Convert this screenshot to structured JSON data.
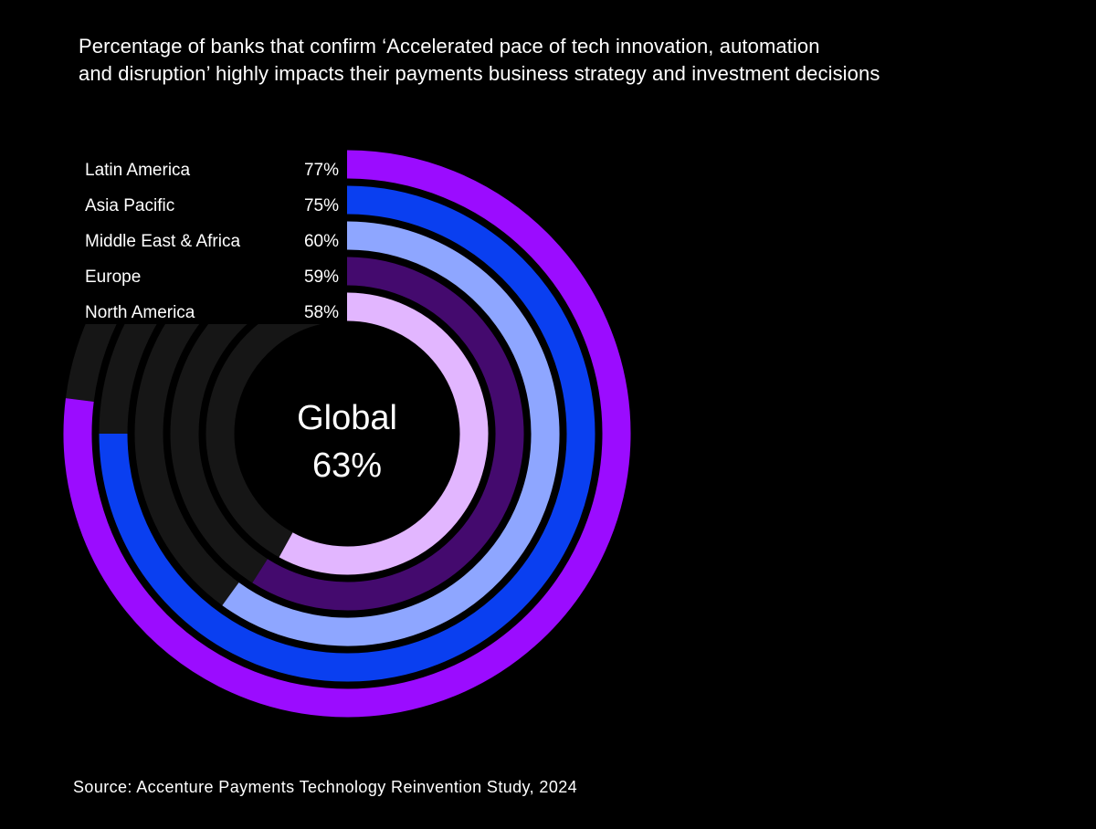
{
  "chart_data": {
    "type": "radial-bar",
    "title_lines": [
      "Percentage of banks that confirm ‘Accelerated pace of tech innovation, automation",
      "and disruption’ highly impacts their payments business strategy and investment decisions"
    ],
    "unit": "%",
    "max_value": 100,
    "series": [
      {
        "name": "Latin America",
        "value": 77,
        "label": "77%",
        "color": "#9b0cff"
      },
      {
        "name": "Asia Pacific",
        "value": 75,
        "label": "75%",
        "color": "#0a3ff0"
      },
      {
        "name": "Middle East & Africa",
        "value": 60,
        "label": "60%",
        "color": "#8ea6ff"
      },
      {
        "name": "Europe",
        "value": 59,
        "label": "59%",
        "color": "#440a6e"
      },
      {
        "name": "North America",
        "value": 58,
        "label": "58%",
        "color": "#e2b6ff"
      }
    ],
    "center": {
      "heading": "Global",
      "value": 63,
      "value_label": "63%"
    },
    "track_color": "#161616",
    "source": "Source: Accenture Payments Technology Reinvention Study, 2024"
  }
}
